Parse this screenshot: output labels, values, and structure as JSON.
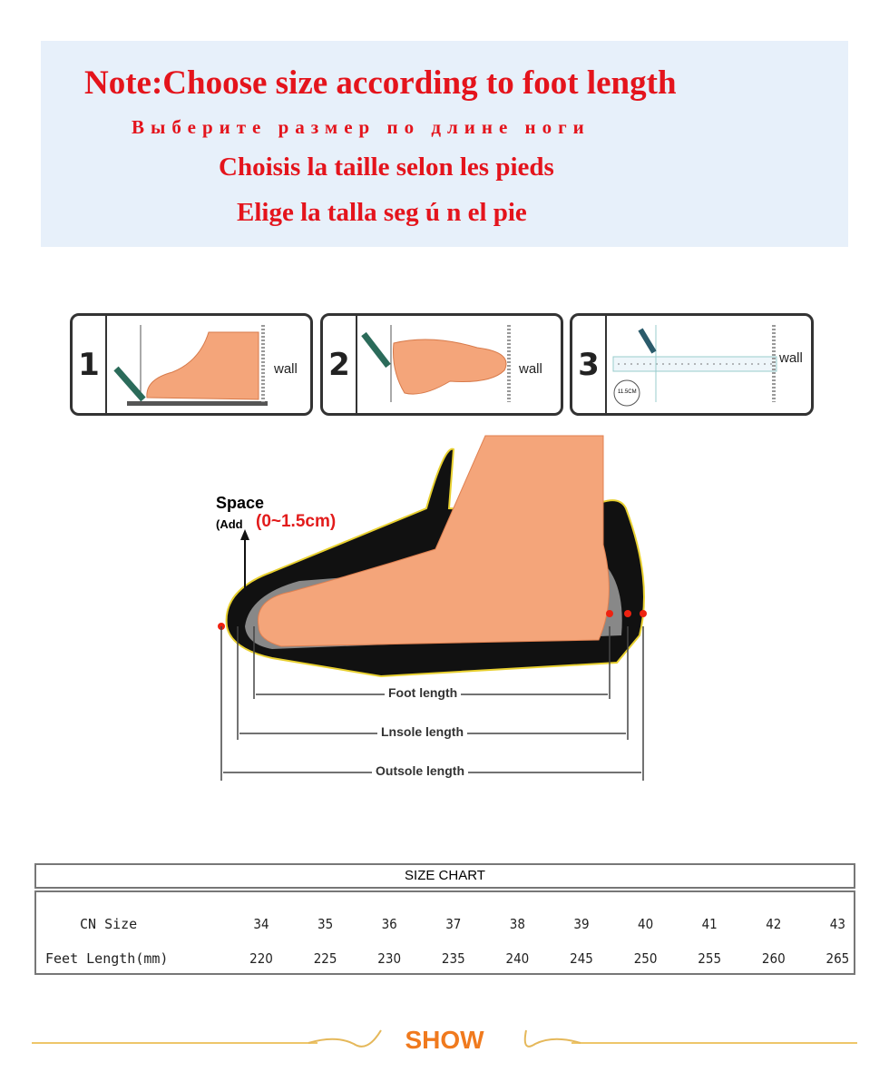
{
  "note": {
    "english": "Note:Choose size according to foot length",
    "russian": "Выберите размер по длине ноги",
    "french": "Choisis la taille selon les pieds",
    "spanish": "Elige la talla seg ú n el pie"
  },
  "steps": [
    {
      "number": "1",
      "label": "wall"
    },
    {
      "number": "2",
      "label": "wall"
    },
    {
      "number": "3",
      "label": "wall",
      "ruler_badge": "11.5CM"
    }
  ],
  "diagram": {
    "space_label": "Space",
    "add_prefix": "(Add",
    "add_range": "(0~1.5cm)",
    "foot_length": "Foot length",
    "insole_length": "Lnsole length",
    "outsole_length": "Outsole length"
  },
  "size_chart": {
    "title": "SIZE CHART",
    "row_labels": [
      "CN Size",
      "Feet Length(mm)"
    ],
    "cn_sizes": [
      "34",
      "35",
      "36",
      "37",
      "38",
      "39",
      "40",
      "41",
      "42",
      "43"
    ],
    "feet_length_mm": [
      "220",
      "225",
      "230",
      "235",
      "240",
      "245",
      "250",
      "255",
      "260",
      "265"
    ]
  },
  "footer": {
    "label": "SHOW"
  },
  "colors": {
    "note_text": "#e4141c",
    "note_bg": "#e7f0fa",
    "foot": "#f4a57a",
    "show": "#f07a1e",
    "ornament": "#eec66a"
  }
}
